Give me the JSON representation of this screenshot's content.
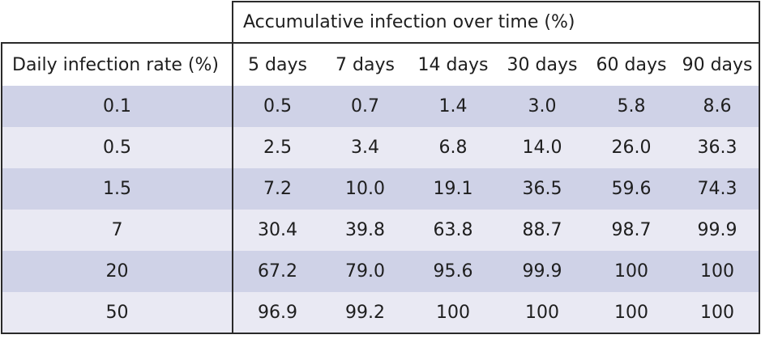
{
  "table": {
    "group_header": "Accumulative infection over time (%)",
    "row_header": "Daily infection rate (%)",
    "columns": [
      "5 days",
      "7 days",
      "14 days",
      "30 days",
      "60 days",
      "90 days"
    ],
    "rows": [
      {
        "rate": "0.1",
        "values": [
          "0.5",
          "0.7",
          "1.4",
          "3.0",
          "5.8",
          "8.6"
        ]
      },
      {
        "rate": "0.5",
        "values": [
          "2.5",
          "3.4",
          "6.8",
          "14.0",
          "26.0",
          "36.3"
        ]
      },
      {
        "rate": "1.5",
        "values": [
          "7.2",
          "10.0",
          "19.1",
          "36.5",
          "59.6",
          "74.3"
        ]
      },
      {
        "rate": "7",
        "values": [
          "30.4",
          "39.8",
          "63.8",
          "88.7",
          "98.7",
          "99.9"
        ]
      },
      {
        "rate": "20",
        "values": [
          "67.2",
          "79.0",
          "95.6",
          "99.9",
          "100",
          "100"
        ]
      },
      {
        "rate": "50",
        "values": [
          "96.9",
          "99.2",
          "100",
          "100",
          "100",
          "100"
        ]
      }
    ],
    "band_colors": [
      "#cfd2e7",
      "#e9e9f3"
    ],
    "border_color": "#2a2a2a"
  }
}
